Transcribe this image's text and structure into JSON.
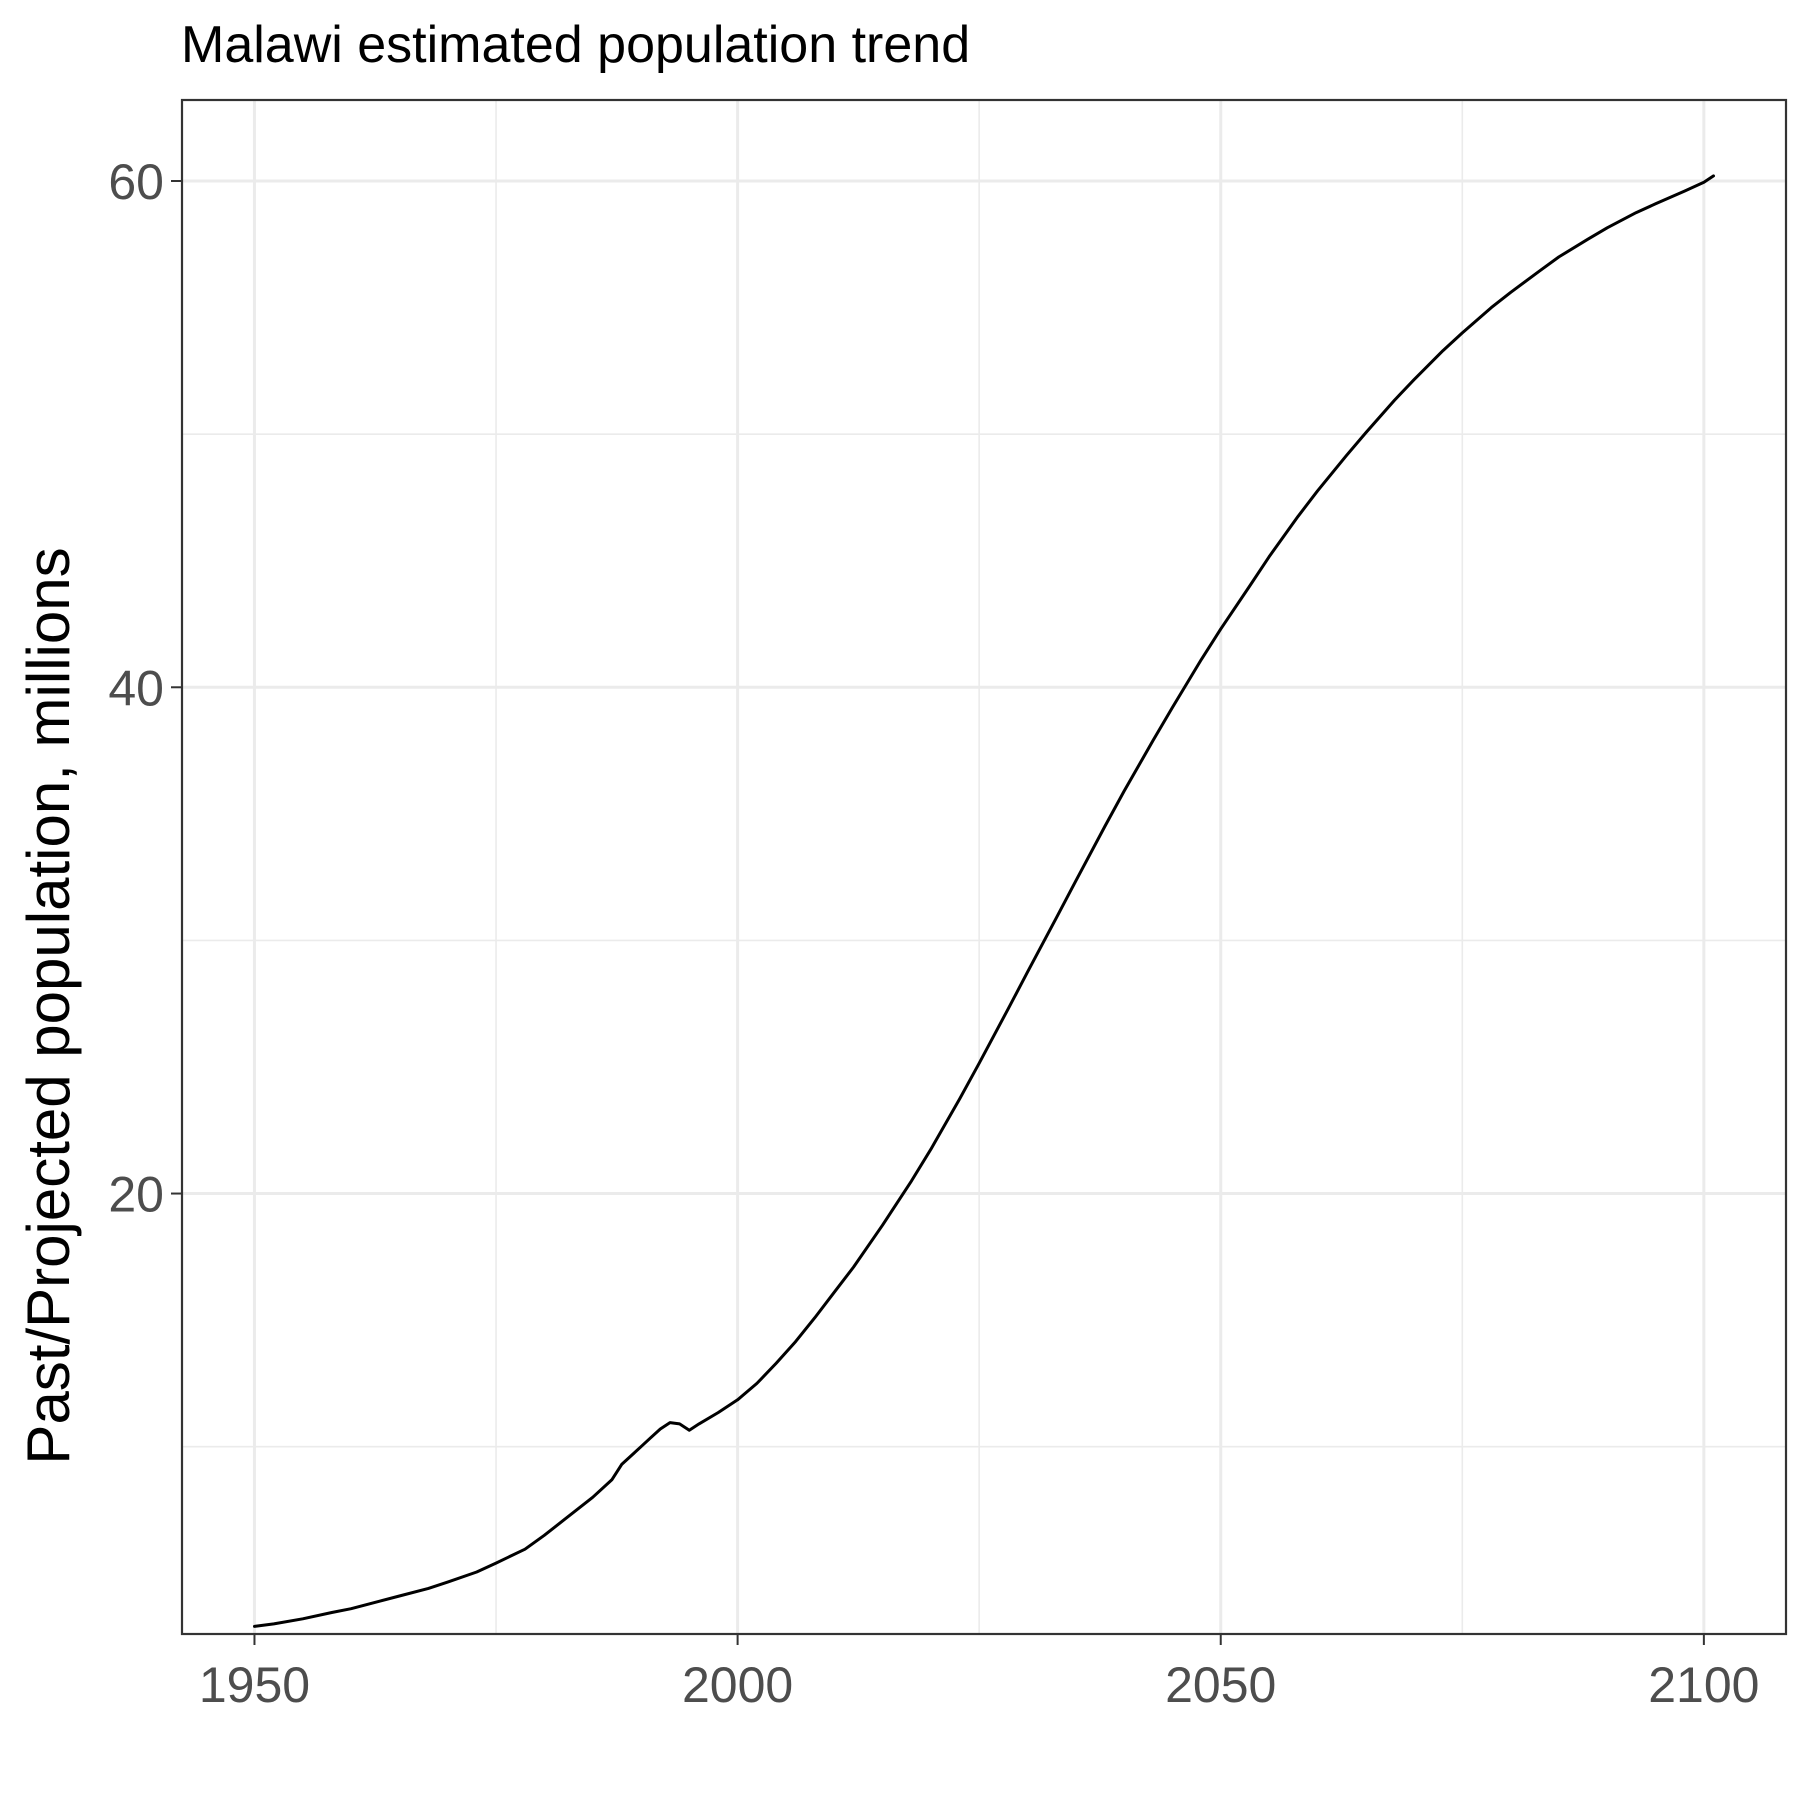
{
  "chart_data": {
    "type": "line",
    "title": "Malawi estimated population trend",
    "xlabel": "",
    "ylabel": "Past/Projected population, millions",
    "xlim": [
      1942.5,
      2108.5
    ],
    "ylim": [
      2.6,
      63.2
    ],
    "x_ticks": [
      1950,
      2000,
      2050,
      2100
    ],
    "x_tick_labels": [
      "1950",
      "2000",
      "2050",
      "2100"
    ],
    "y_ticks": [
      20,
      40,
      60
    ],
    "y_tick_labels": [
      "20",
      "40",
      "60"
    ],
    "x_minor": [
      1975,
      2025,
      2075
    ],
    "y_minor": [
      10,
      30,
      50
    ],
    "grid": true,
    "legend": "none",
    "line_color": "#000000",
    "series": [
      {
        "x": [
          1950,
          1952,
          1955,
          1958,
          1960,
          1963,
          1965,
          1968,
          1970,
          1973,
          1975,
          1978,
          1980,
          1982,
          1985,
          1987,
          1988,
          1990,
          1991,
          1992,
          1993,
          1994,
          1995,
          1996,
          1998,
          2000,
          2002,
          2004,
          2006,
          2008,
          2010,
          2012,
          2015,
          2018,
          2020,
          2023,
          2025,
          2028,
          2030,
          2033,
          2035,
          2038,
          2040,
          2043,
          2045,
          2048,
          2050,
          2053,
          2055,
          2058,
          2060,
          2063,
          2065,
          2068,
          2070,
          2073,
          2075,
          2078,
          2080,
          2083,
          2085,
          2088,
          2090,
          2093,
          2095,
          2098,
          2100,
          2101
        ],
        "y": [
          2.9,
          3.0,
          3.2,
          3.45,
          3.6,
          3.9,
          4.1,
          4.4,
          4.65,
          5.05,
          5.4,
          5.95,
          6.5,
          7.1,
          8.0,
          8.7,
          9.3,
          10.0,
          10.35,
          10.7,
          10.95,
          10.9,
          10.65,
          10.9,
          11.35,
          11.85,
          12.5,
          13.3,
          14.15,
          15.1,
          16.1,
          17.1,
          18.75,
          20.5,
          21.75,
          23.75,
          25.15,
          27.3,
          28.75,
          30.9,
          32.35,
          34.5,
          35.9,
          37.9,
          39.2,
          41.1,
          42.3,
          44.0,
          45.15,
          46.75,
          47.75,
          49.15,
          50.05,
          51.35,
          52.15,
          53.3,
          54.0,
          55.0,
          55.6,
          56.45,
          57.0,
          57.7,
          58.15,
          58.75,
          59.1,
          59.6,
          59.95,
          60.2
        ]
      }
    ]
  }
}
